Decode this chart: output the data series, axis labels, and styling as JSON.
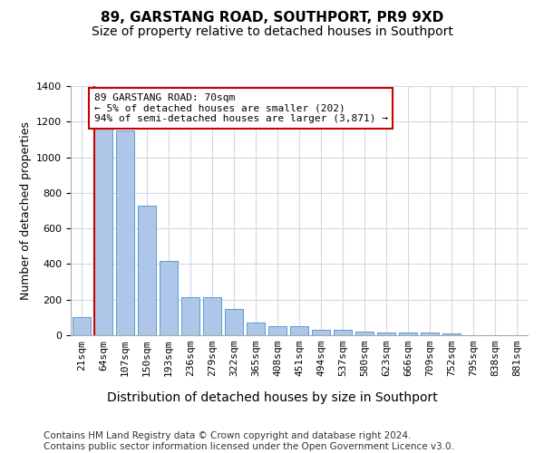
{
  "title": "89, GARSTANG ROAD, SOUTHPORT, PR9 9XD",
  "subtitle": "Size of property relative to detached houses in Southport",
  "xlabel": "Distribution of detached houses by size in Southport",
  "ylabel": "Number of detached properties",
  "categories": [
    "21sqm",
    "64sqm",
    "107sqm",
    "150sqm",
    "193sqm",
    "236sqm",
    "279sqm",
    "322sqm",
    "365sqm",
    "408sqm",
    "451sqm",
    "494sqm",
    "537sqm",
    "580sqm",
    "623sqm",
    "666sqm",
    "709sqm",
    "752sqm",
    "795sqm",
    "838sqm",
    "881sqm"
  ],
  "values": [
    100,
    1160,
    1150,
    730,
    415,
    215,
    215,
    150,
    70,
    50,
    50,
    30,
    30,
    20,
    15,
    15,
    15,
    10,
    0,
    0,
    0
  ],
  "bar_color": "#aec6e8",
  "bar_edge_color": "#5b9bd5",
  "highlight_index": 1,
  "highlight_color": "#cc0000",
  "annotation_text": "89 GARSTANG ROAD: 70sqm\n← 5% of detached houses are smaller (202)\n94% of semi-detached houses are larger (3,871) →",
  "annotation_box_color": "#ffffff",
  "annotation_border_color": "#cc0000",
  "ylim": [
    0,
    1400
  ],
  "yticks": [
    0,
    200,
    400,
    600,
    800,
    1000,
    1200,
    1400
  ],
  "background_color": "#ffffff",
  "grid_color": "#d0d8e8",
  "footer_text": "Contains HM Land Registry data © Crown copyright and database right 2024.\nContains public sector information licensed under the Open Government Licence v3.0.",
  "title_fontsize": 11,
  "subtitle_fontsize": 10,
  "xlabel_fontsize": 10,
  "ylabel_fontsize": 9,
  "tick_fontsize": 8,
  "annotation_fontsize": 8,
  "footer_fontsize": 7.5
}
